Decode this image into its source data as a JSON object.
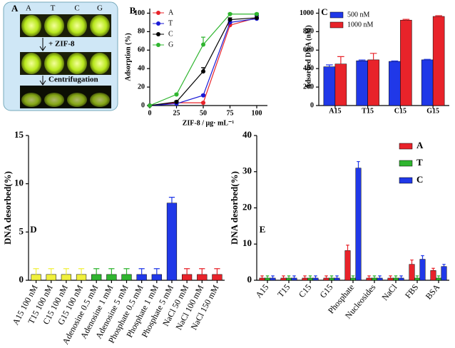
{
  "photo_panel": {
    "label": "A",
    "tubes": [
      "A",
      "T",
      "C",
      "G"
    ],
    "steps": [
      "+ ZIF-8",
      "Centrifugation"
    ]
  },
  "chart_data": [
    {
      "type": "line",
      "panel": "B",
      "xlabel": "ZIF-8 / μg· mL⁻¹",
      "ylabel": "Adsorption (%)",
      "x": [
        0,
        25,
        50,
        75,
        100
      ],
      "xlim": [
        0,
        110
      ],
      "xticks": [
        0,
        25,
        50,
        75,
        100
      ],
      "ylim": [
        0,
        105
      ],
      "yticks": [
        0,
        20,
        40,
        60,
        80,
        100
      ],
      "legend": "top-left",
      "series": [
        {
          "name": "A",
          "color": "#e8232a",
          "values": [
            0,
            3,
            3,
            87,
            95
          ],
          "errors": [
            0,
            0.5,
            0.5,
            2,
            3
          ]
        },
        {
          "name": "T",
          "color": "#1a1ad6",
          "values": [
            0,
            2,
            11,
            90,
            94
          ],
          "errors": [
            0,
            0.5,
            1,
            2,
            3
          ]
        },
        {
          "name": "C",
          "color": "#000000",
          "values": [
            0,
            4,
            37,
            93,
            95
          ],
          "errors": [
            0,
            1,
            4,
            2,
            3
          ]
        },
        {
          "name": "G",
          "color": "#2fb52f",
          "values": [
            0,
            12,
            66,
            99,
            99
          ],
          "errors": [
            0,
            1,
            8,
            1,
            1
          ]
        }
      ]
    },
    {
      "type": "bar",
      "panel": "C",
      "ylabel": "Adsorbed DNA (nM)",
      "categories": [
        "A15",
        "T15",
        "C15",
        "G15"
      ],
      "ylim": [
        0,
        1050
      ],
      "yticks": [
        0,
        200,
        400,
        600,
        800,
        1000
      ],
      "legend": "top-left",
      "series": [
        {
          "name": "500 nM",
          "color": "#2038e8",
          "values": [
            420,
            485,
            478,
            495
          ],
          "errors": [
            20,
            8,
            5,
            5
          ]
        },
        {
          "name": "1000 nM",
          "color": "#e8232a",
          "values": [
            450,
            495,
            925,
            965
          ],
          "errors": [
            80,
            70,
            8,
            8
          ]
        }
      ]
    },
    {
      "type": "bar",
      "panel": "D",
      "ylabel": "DNA desorbed(%)",
      "categories": [
        "A15 100 nM",
        "T15 100 nM",
        "C15 100 nM",
        "G15 100 nM",
        "Adenosine 0.5 mM",
        "Adenosine 1 mM",
        "Adenosine 5 mM",
        "Phosphate 0.5 mM",
        "Phosphate 1 mM",
        "Phosphate 5 mM",
        "NaCl 50 mM",
        "NaCl 100 mM",
        "NaCl 150 mM"
      ],
      "values": [
        0.6,
        0.6,
        0.6,
        0.6,
        0.6,
        0.6,
        0.6,
        0.6,
        0.6,
        8,
        0.6,
        0.6,
        0.6
      ],
      "errors": [
        0.6,
        0.6,
        0.6,
        0.6,
        0.6,
        0.6,
        0.6,
        0.6,
        0.6,
        0.6,
        0.6,
        0.6,
        0.6
      ],
      "colors": [
        "#f0f03c",
        "#f0f03c",
        "#f0f03c",
        "#f0f03c",
        "#2fb52f",
        "#2fb52f",
        "#2fb52f",
        "#2038e8",
        "#2038e8",
        "#2038e8",
        "#e8232a",
        "#e8232a",
        "#e8232a"
      ],
      "ylim": [
        0,
        15
      ],
      "yticks": [
        0,
        5,
        10,
        15
      ]
    },
    {
      "type": "bar",
      "panel": "E",
      "ylabel": "DNA desorbed(%)",
      "categories": [
        "A15",
        "T15",
        "C15",
        "G15",
        "Phosphate",
        "Nucleosides",
        "NaCl",
        "FBS",
        "BSA"
      ],
      "ylim": [
        0,
        40
      ],
      "yticks": [
        0,
        10,
        20,
        30,
        40
      ],
      "legend": "top-right",
      "series": [
        {
          "name": "A",
          "color": "#e8232a",
          "values": [
            0.6,
            0.6,
            0.6,
            0.6,
            8.2,
            0.6,
            0.6,
            4.4,
            2.7
          ],
          "errors": [
            0.6,
            0.6,
            0.6,
            0.6,
            1.5,
            0.6,
            0.6,
            1.2,
            0.6
          ]
        },
        {
          "name": "T",
          "color": "#2fb52f",
          "values": [
            0.6,
            0.6,
            0.6,
            0.6,
            0.6,
            0.6,
            0.6,
            0.6,
            0.6
          ],
          "errors": [
            0.6,
            0.6,
            0.6,
            0.6,
            0.6,
            0.6,
            0.6,
            0.6,
            0.6
          ]
        },
        {
          "name": "C",
          "color": "#2038e8",
          "values": [
            0.6,
            0.6,
            0.6,
            0.6,
            31,
            0.6,
            0.6,
            5.8,
            3.8
          ],
          "errors": [
            0.6,
            0.6,
            0.6,
            0.6,
            1.8,
            0.6,
            0.6,
            1,
            0.6
          ]
        }
      ]
    }
  ]
}
